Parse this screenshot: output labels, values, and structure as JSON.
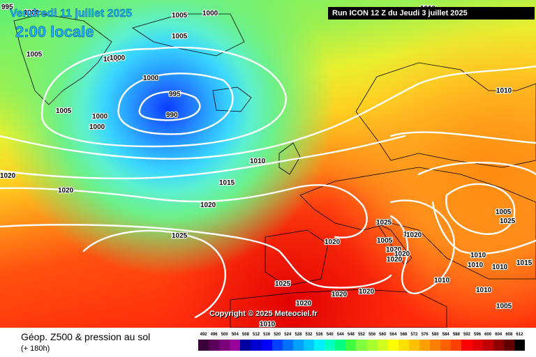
{
  "header": {
    "date": "Vendredi 11 juillet 2025",
    "time": "2:00 locale",
    "run": "Run ICON 12 Z du Jeudi 3 juillet 2025"
  },
  "copyright": "Copyright © 2025 Meteociel.fr",
  "legend": {
    "title": "Géop. Z500 & pression au sol",
    "subtitle": "(+ 180h)",
    "scale_values": [
      "492",
      "496",
      "500",
      "504",
      "508",
      "512",
      "516",
      "520",
      "524",
      "528",
      "532",
      "536",
      "540",
      "544",
      "548",
      "552",
      "556",
      "560",
      "564",
      "568",
      "572",
      "576",
      "580",
      "584",
      "588",
      "592",
      "596",
      "600",
      "604",
      "608",
      "612"
    ],
    "scale_colors": [
      "#3a003a",
      "#5a005a",
      "#7a007a",
      "#9a009a",
      "#0000a0",
      "#0000d0",
      "#0000ff",
      "#0040ff",
      "#0070ff",
      "#00a0ff",
      "#00c8ff",
      "#00f0ff",
      "#00ffc0",
      "#00ff80",
      "#40ff40",
      "#80ff40",
      "#a8ff30",
      "#d0ff20",
      "#ffff00",
      "#ffe000",
      "#ffc000",
      "#ffa000",
      "#ff8000",
      "#ff6000",
      "#ff4000",
      "#ff0000",
      "#e00000",
      "#c00000",
      "#900000",
      "#600000",
      "#000000"
    ]
  },
  "pressure_labels": [
    {
      "text": "995"
    },
    {
      "text": "1000"
    },
    {
      "text": "1005"
    },
    {
      "text": "1000"
    },
    {
      "text": "1005"
    },
    {
      "text": "1005"
    },
    {
      "text": "1000"
    },
    {
      "text": "1000"
    },
    {
      "text": "1000"
    },
    {
      "text": "995"
    },
    {
      "text": "990"
    },
    {
      "text": "1005"
    },
    {
      "text": "1000"
    },
    {
      "text": "1000"
    },
    {
      "text": "1010"
    },
    {
      "text": "1010"
    },
    {
      "text": "1010"
    },
    {
      "text": "1020"
    },
    {
      "text": "1020"
    },
    {
      "text": "1015"
    },
    {
      "text": "1020"
    },
    {
      "text": "1025"
    },
    {
      "text": "1025"
    },
    {
      "text": "1020"
    },
    {
      "text": "1020"
    },
    {
      "text": "1025"
    },
    {
      "text": "1020"
    },
    {
      "text": "1020"
    },
    {
      "text": "1020"
    },
    {
      "text": "1005"
    },
    {
      "text": "1010"
    },
    {
      "text": "1010"
    },
    {
      "text": "1010"
    },
    {
      "text": "1010"
    },
    {
      "text": "1015"
    },
    {
      "text": "1010"
    },
    {
      "text": "1005"
    },
    {
      "text": "1010"
    },
    {
      "text": "1005"
    },
    {
      "text": "1020"
    },
    {
      "text": "1020"
    },
    {
      "text": "1020"
    },
    {
      "text": "1020"
    },
    {
      "text": "1025"
    }
  ]
}
